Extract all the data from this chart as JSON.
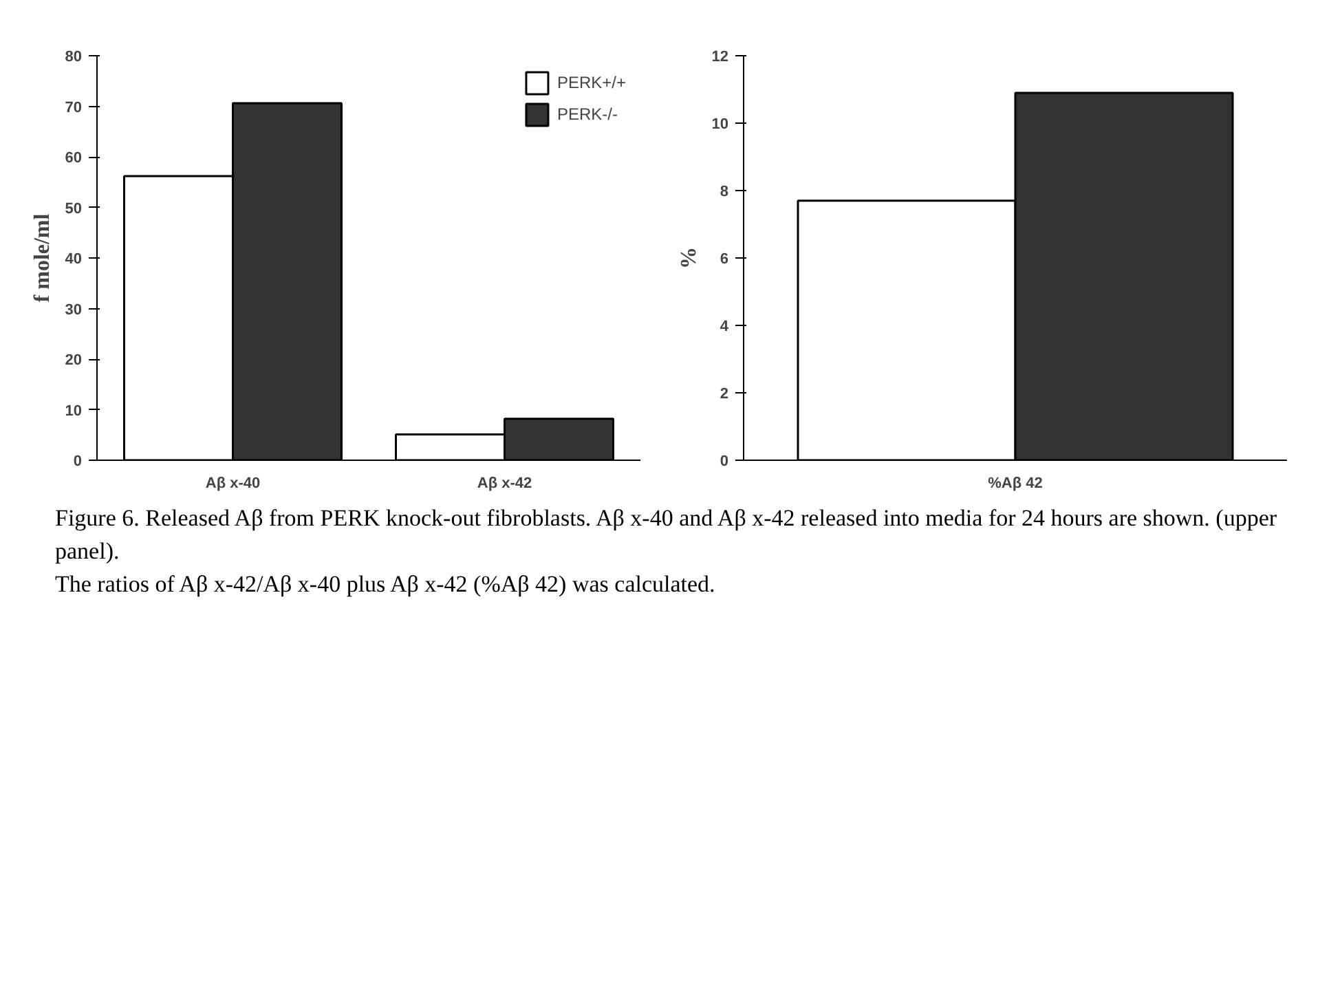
{
  "chart_data": [
    {
      "type": "bar",
      "ylabel": "f mole/ml",
      "categories": [
        "Aβ x-40",
        "Aβ x-42"
      ],
      "ylim": [
        0,
        80
      ],
      "yticks": [
        0,
        10,
        20,
        30,
        40,
        50,
        60,
        70,
        80
      ],
      "grid": false,
      "legend": "top right",
      "series": [
        {
          "name": "PERK+/+",
          "color": "#ffffff",
          "values": [
            56.2,
            5.1
          ]
        },
        {
          "name": "PERK-/-",
          "color": "#333333",
          "values": [
            70.6,
            8.2
          ]
        }
      ]
    },
    {
      "type": "bar",
      "ylabel": "%",
      "categories": [
        "%Aβ 42"
      ],
      "ylim": [
        0,
        12
      ],
      "yticks": [
        0,
        2,
        4,
        6,
        8,
        10,
        12
      ],
      "grid": false,
      "series": [
        {
          "color": "#ffffff",
          "values": [
            7.7
          ]
        },
        {
          "color": "#333333",
          "values": [
            10.9
          ]
        }
      ],
      "annotations": [
        "Figure 6.   Released Aβ from PERK knock-out fibroblasts. Aβ x-40 and Aβ x-42 released into media for 24 hours are shown. (upper panel).",
        "The ratios of Aβ x-42/Aβ x-40 plus Aβ x-42 (%Aβ 42) was calculated."
      ]
    }
  ]
}
